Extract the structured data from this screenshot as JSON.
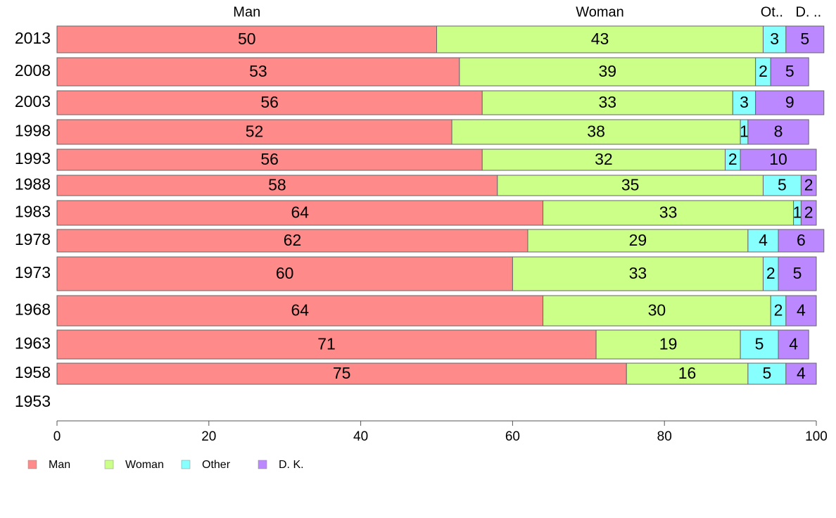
{
  "chart_data": {
    "type": "bar",
    "orientation": "horizontal",
    "stacked": true,
    "categories": [
      "2013",
      "2008",
      "2003",
      "1998",
      "1993",
      "1988",
      "1983",
      "1978",
      "1973",
      "1968",
      "1963",
      "1958",
      "1953"
    ],
    "series": [
      {
        "name": "Man",
        "color": "#ff8a8a",
        "values": [
          50,
          53,
          56,
          52,
          56,
          58,
          64,
          62,
          60,
          64,
          71,
          75,
          null
        ]
      },
      {
        "name": "Woman",
        "color": "#ccff88",
        "values": [
          43,
          39,
          33,
          38,
          32,
          35,
          33,
          29,
          33,
          30,
          19,
          16,
          null
        ]
      },
      {
        "name": "Other",
        "color": "#88ffff",
        "values": [
          3,
          2,
          3,
          1,
          2,
          5,
          1,
          4,
          2,
          2,
          5,
          5,
          null
        ]
      },
      {
        "name": "D. K.",
        "color": "#bb88ff",
        "values": [
          5,
          5,
          9,
          8,
          10,
          2,
          2,
          6,
          5,
          4,
          4,
          4,
          null
        ]
      }
    ],
    "top_labels": [
      "Man",
      "Woman",
      "Ot..",
      "D. .."
    ],
    "xlim": [
      0,
      100
    ],
    "xticks": [
      0,
      20,
      40,
      60,
      80,
      100
    ],
    "legend_position": "bottom-left",
    "grid": false
  }
}
